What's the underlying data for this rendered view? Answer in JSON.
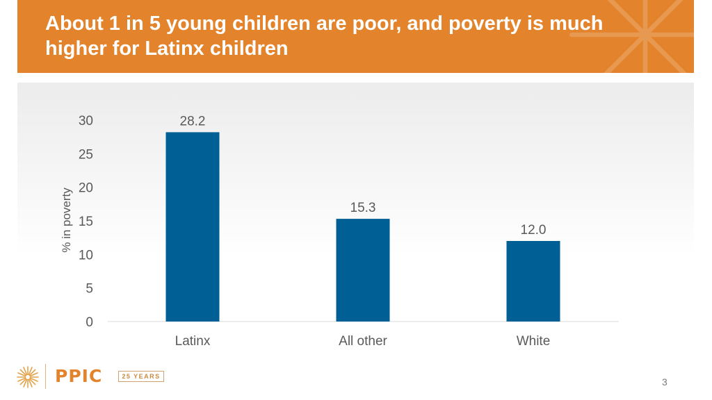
{
  "header": {
    "title": "About 1 in 5 young children are poor, and poverty is much higher for Latinx children"
  },
  "chart_data": {
    "type": "bar",
    "categories": [
      "Latinx",
      "All other",
      "White"
    ],
    "values": [
      28.2,
      15.3,
      12.0
    ],
    "value_labels": [
      "28.2",
      "15.3",
      "12.0"
    ],
    "title": "",
    "xlabel": "",
    "ylabel": "% in poverty",
    "ylim": [
      0,
      30
    ],
    "yticks": [
      0,
      5,
      10,
      15,
      20,
      25,
      30
    ],
    "bar_color": "#005f94",
    "grid": false
  },
  "footer": {
    "logo_text": "PPIC",
    "anniversary": "25 YEARS",
    "page_number": "3"
  },
  "colors": {
    "accent": "#e3832b",
    "bar": "#005f94",
    "text": "#595959"
  }
}
